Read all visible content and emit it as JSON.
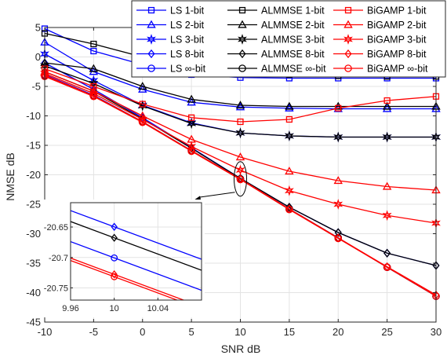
{
  "chart_data": {
    "type": "line",
    "xlabel": "SNR dB",
    "ylabel": "NMSE dB",
    "xlim": [
      -10,
      30
    ],
    "ylim": [
      -45,
      5
    ],
    "x_ticks": [
      "-10",
      "-5",
      "0",
      "5",
      "10",
      "15",
      "20",
      "25",
      "30"
    ],
    "y_ticks": [
      "5",
      "0",
      "-5",
      "-10",
      "-15",
      "-20",
      "-25",
      "-30",
      "-35",
      "-40",
      "-45"
    ],
    "grid": true,
    "legend_position": "top-right",
    "x": [
      -10,
      -5,
      0,
      5,
      10,
      15,
      20,
      25,
      30
    ],
    "colors": {
      "LS": "#0000ff",
      "ALMMSE": "#000000",
      "BiGAMP": "#ff0000"
    },
    "series": [
      {
        "name": "LS 1-bit",
        "group": "LS",
        "marker": "square",
        "values": [
          4.8,
          1.0,
          -1.3,
          -3.0,
          -3.5,
          -3.6,
          -3.6,
          -3.6,
          -3.6
        ]
      },
      {
        "name": "LS 2-bit",
        "group": "LS",
        "marker": "triangle",
        "values": [
          2.5,
          -2.5,
          -5.5,
          -7.7,
          -8.5,
          -8.7,
          -8.8,
          -8.8,
          -8.8
        ]
      },
      {
        "name": "LS 3-bit",
        "group": "LS",
        "marker": "star",
        "values": [
          0.5,
          -4.0,
          -8.2,
          -11.2,
          -12.9,
          -13.4,
          -13.6,
          -13.6,
          -13.6
        ]
      },
      {
        "name": "LS 8-bit",
        "group": "LS",
        "marker": "diamond",
        "values": [
          -1.0,
          -5.5,
          -10.3,
          -15.4,
          -20.6,
          -25.5,
          -29.8,
          -33.3,
          -35.4
        ]
      },
      {
        "name": "LS ∞-bit",
        "group": "LS",
        "marker": "circle",
        "values": [
          -3.0,
          -6.5,
          -11.0,
          -15.9,
          -20.7,
          -25.8,
          -30.7,
          -35.7,
          -40.6
        ]
      },
      {
        "name": "ALMMSE 1-bit",
        "group": "ALMMSE",
        "marker": "square",
        "values": [
          4.0,
          2.2,
          0.0,
          -1.5,
          -2.5,
          -3.0,
          -3.2,
          -3.3,
          -3.3
        ]
      },
      {
        "name": "ALMMSE 2-bit",
        "group": "ALMMSE",
        "marker": "triangle",
        "values": [
          -1.0,
          -2.0,
          -5.0,
          -7.2,
          -8.2,
          -8.4,
          -8.4,
          -8.4,
          -8.4
        ]
      },
      {
        "name": "ALMMSE 3-bit",
        "group": "ALMMSE",
        "marker": "star",
        "values": [
          -1.5,
          -4.5,
          -8.3,
          -11.3,
          -12.9,
          -13.4,
          -13.6,
          -13.6,
          -13.6
        ]
      },
      {
        "name": "ALMMSE 8-bit",
        "group": "ALMMSE",
        "marker": "diamond",
        "values": [
          -2.5,
          -5.8,
          -10.5,
          -15.5,
          -20.6,
          -25.5,
          -29.8,
          -33.3,
          -35.4
        ]
      },
      {
        "name": "ALMMSE ∞-bit",
        "group": "ALMMSE",
        "marker": "circle",
        "values": [
          -3.2,
          -6.6,
          -11.0,
          -15.9,
          -20.7,
          -25.8,
          -30.7,
          -35.7,
          -40.6
        ]
      },
      {
        "name": "BiGAMP 1-bit",
        "group": "BiGAMP",
        "marker": "square",
        "values": [
          -2.0,
          -5.0,
          -8.0,
          -10.3,
          -11.0,
          -10.6,
          -8.7,
          -7.4,
          -6.7
        ]
      },
      {
        "name": "BiGAMP 2-bit",
        "group": "BiGAMP",
        "marker": "triangle",
        "values": [
          -2.5,
          -5.8,
          -10.0,
          -14.0,
          -17.0,
          -19.4,
          -21.0,
          -22.0,
          -22.6
        ]
      },
      {
        "name": "BiGAMP 3-bit",
        "group": "BiGAMP",
        "marker": "star",
        "values": [
          -2.8,
          -6.2,
          -10.6,
          -15.2,
          -19.2,
          -22.7,
          -25.0,
          -26.9,
          -28.2
        ]
      },
      {
        "name": "BiGAMP 8-bit",
        "group": "BiGAMP",
        "marker": "diamond",
        "values": [
          -3.1,
          -6.6,
          -11.0,
          -15.9,
          -20.7,
          -25.8,
          -30.7,
          -35.6,
          -40.4
        ]
      },
      {
        "name": "BiGAMP ∞-bit",
        "group": "BiGAMP",
        "marker": "circle",
        "values": [
          -3.3,
          -6.7,
          -11.1,
          -16.0,
          -20.8,
          -25.9,
          -30.8,
          -35.7,
          -40.6
        ]
      }
    ],
    "inset": {
      "xlim": [
        9.96,
        10.08
      ],
      "ylim": [
        -20.77,
        -20.61
      ],
      "x_ticks": [
        "9.96",
        "10",
        "10.04"
      ],
      "y_ticks": [
        "-20.65",
        "-20.7",
        "-20.75"
      ],
      "zoom_center": {
        "x": 10,
        "y": -20.7
      },
      "lines": [
        {
          "group": "LS",
          "marker": "diamond",
          "points": [
            [
              9.96,
              -20.623
            ],
            [
              10.08,
              -20.703
            ]
          ]
        },
        {
          "group": "ALMMSE",
          "marker": "diamond",
          "points": [
            [
              9.96,
              -20.641
            ],
            [
              10.08,
              -20.721
            ]
          ]
        },
        {
          "group": "LS",
          "marker": "circle",
          "points": [
            [
              9.96,
              -20.674
            ],
            [
              10.08,
              -20.754
            ]
          ]
        },
        {
          "group": "BiGAMP",
          "marker": "diamond",
          "points": [
            [
              9.96,
              -20.701
            ],
            [
              10.08,
              -20.781
            ]
          ]
        },
        {
          "group": "BiGAMP",
          "marker": "circle",
          "points": [
            [
              9.96,
              -20.705
            ],
            [
              10.08,
              -20.785
            ]
          ]
        }
      ],
      "markers_at_x": 10
    }
  }
}
